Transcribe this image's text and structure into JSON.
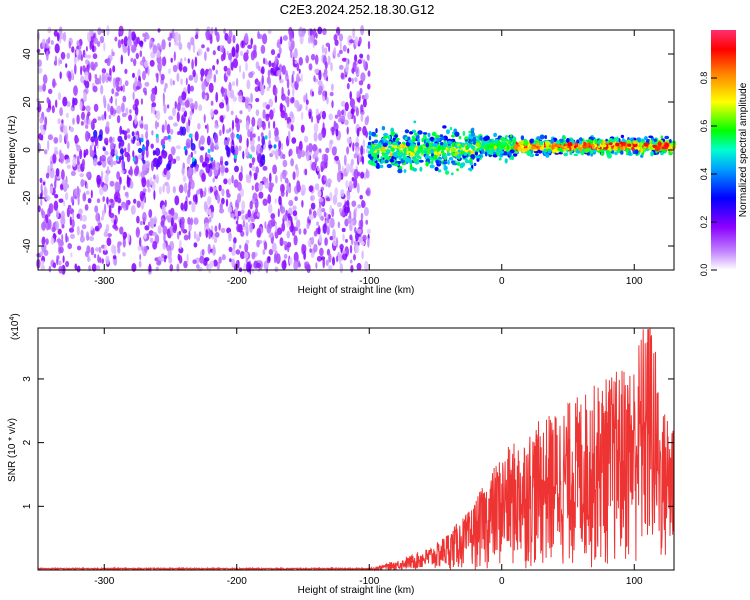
{
  "title": "C2E3.2024.252.18.30.G12",
  "chart_data": [
    {
      "type": "heatmap",
      "xlabel": "Height of straight line (km)",
      "ylabel": "Frequency (Hz)",
      "xlim": [
        -350,
        130
      ],
      "ylim": [
        -50,
        50
      ],
      "xticks": [
        -300,
        -200,
        -100,
        0,
        100
      ],
      "yticks": [
        -40,
        -20,
        0,
        20,
        40
      ],
      "colorbar": {
        "label": "Normalized spectral amplitude",
        "range": [
          0,
          1
        ],
        "ticks": [
          "0.0",
          "0.2",
          "0.4",
          "0.6",
          "0.8"
        ],
        "colors": [
          "#ffffff",
          "#8a00ff",
          "#0000ff",
          "#00e0ff",
          "#00ff00",
          "#ffff00",
          "#ff8000",
          "#ff0000",
          "#ff2070"
        ]
      },
      "regions": [
        {
          "x_range": [
            -350,
            -100
          ],
          "description_level": 0.15,
          "band_center_hz": 0,
          "band_halfwidth_hz": 50
        },
        {
          "x_range": [
            -100,
            130
          ],
          "description_level": 0.6,
          "band_center_hz": 1,
          "band_halfwidth_hz": 4
        }
      ]
    },
    {
      "type": "line",
      "xlabel": "Height of straight line (km)",
      "ylabel": "SNR (10 * v/v)",
      "y_multiplier": "(x10",
      "y_exponent": "4",
      "xlim": [
        -350,
        130
      ],
      "ylim": [
        0,
        3.8
      ],
      "xticks": [
        -300,
        -200,
        -100,
        0,
        100
      ],
      "yticks": [
        1,
        2,
        3
      ],
      "color": "#ee3333",
      "segments": [
        {
          "x": -350,
          "y": 0.02
        },
        {
          "x": -100,
          "y": 0.02
        },
        {
          "x": -75,
          "y": 0.15
        },
        {
          "x": -50,
          "y": 0.35
        },
        {
          "x": -25,
          "y": 0.8
        },
        {
          "x": 0,
          "y": 1.6
        },
        {
          "x": 25,
          "y": 2.0
        },
        {
          "x": 50,
          "y": 2.3
        },
        {
          "x": 75,
          "y": 2.6
        },
        {
          "x": 100,
          "y": 2.9
        },
        {
          "x": 112,
          "y": 3.85
        },
        {
          "x": 120,
          "y": 2.2
        },
        {
          "x": 130,
          "y": 2.2
        }
      ]
    }
  ]
}
